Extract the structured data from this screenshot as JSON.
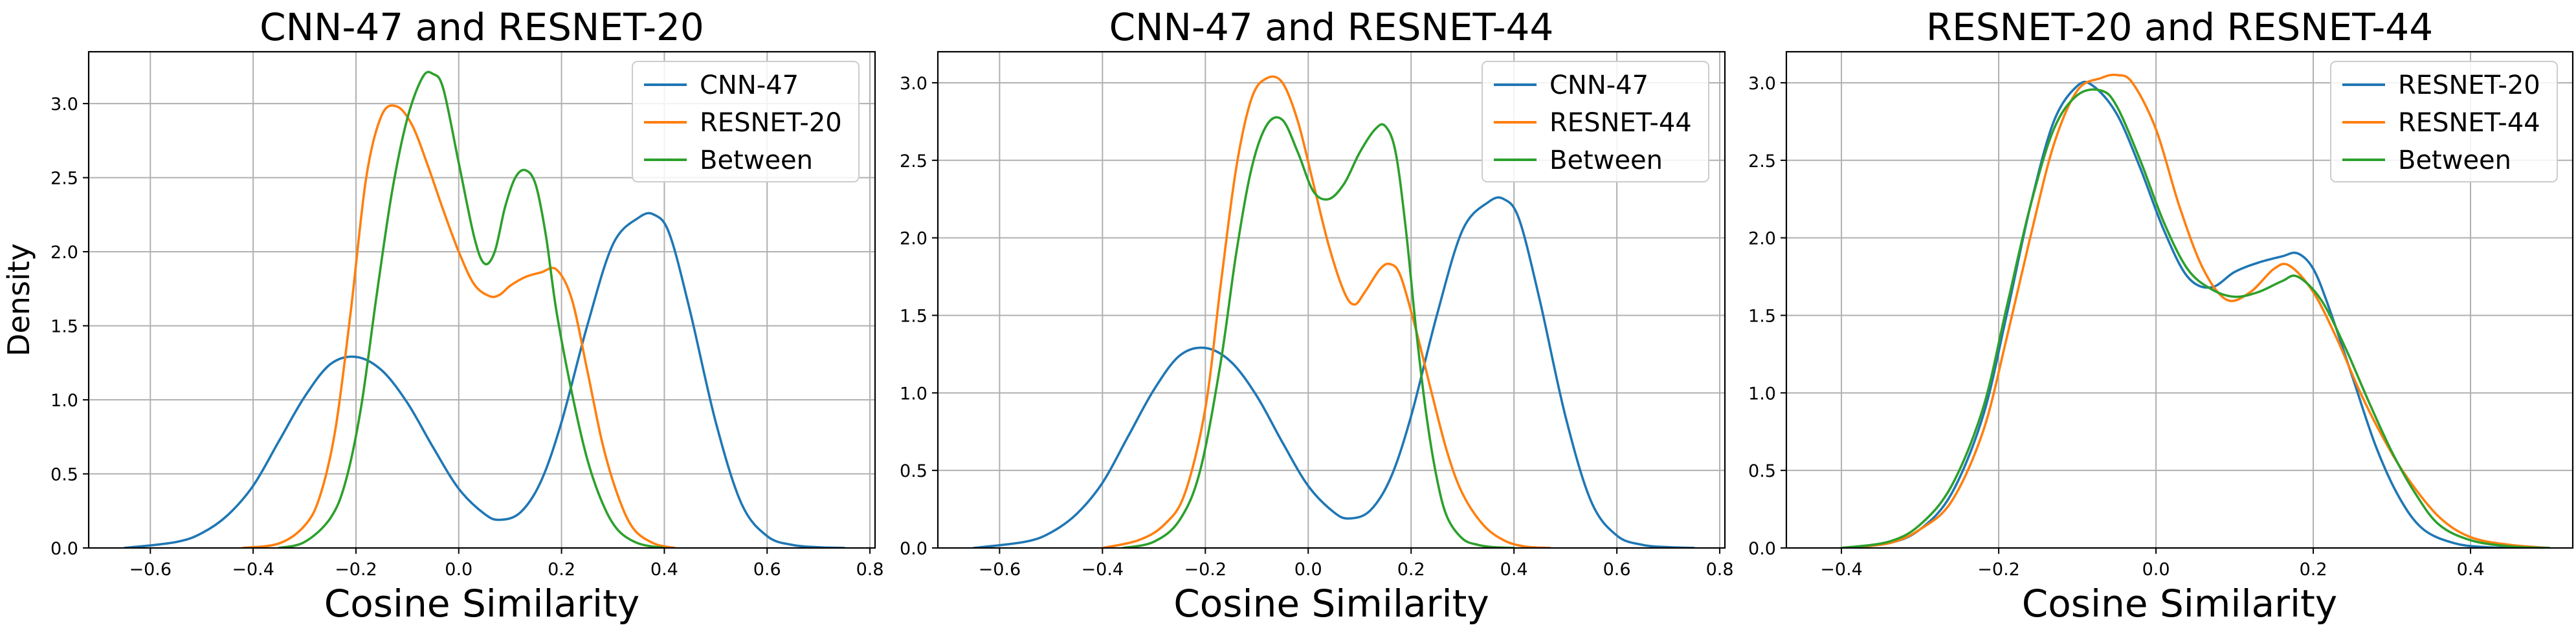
{
  "chart_data": [
    {
      "type": "line",
      "title": "CNN-47 and RESNET-20",
      "xlabel": "Cosine Similarity",
      "ylabel": "Density",
      "xlim": [
        -0.72,
        0.81
      ],
      "ylim": [
        0,
        3.35
      ],
      "xticks": [
        -0.6,
        -0.4,
        -0.2,
        0.0,
        0.2,
        0.4,
        0.6,
        0.8
      ],
      "xtick_labels": [
        "−0.6",
        "−0.4",
        "−0.2",
        "0.0",
        "0.2",
        "0.4",
        "0.6",
        "0.8"
      ],
      "yticks": [
        0.0,
        0.5,
        1.0,
        1.5,
        2.0,
        2.5,
        3.0
      ],
      "ytick_labels": [
        "0.0",
        "0.5",
        "1.0",
        "1.5",
        "2.0",
        "2.5",
        "3.0"
      ],
      "grid": true,
      "legend_position": "top-right",
      "series": [
        {
          "name": "CNN-47",
          "color": "#1f77b4",
          "x": [
            -0.65,
            -0.55,
            -0.5,
            -0.45,
            -0.4,
            -0.35,
            -0.3,
            -0.25,
            -0.2,
            -0.15,
            -0.1,
            -0.05,
            0.0,
            0.05,
            0.08,
            0.12,
            0.16,
            0.2,
            0.25,
            0.3,
            0.35,
            0.38,
            0.41,
            0.45,
            0.5,
            0.55,
            0.6,
            0.65,
            0.7,
            0.75
          ],
          "y": [
            0.0,
            0.04,
            0.1,
            0.22,
            0.42,
            0.72,
            1.02,
            1.24,
            1.29,
            1.2,
            0.98,
            0.68,
            0.4,
            0.23,
            0.19,
            0.24,
            0.45,
            0.85,
            1.5,
            2.05,
            2.23,
            2.25,
            2.12,
            1.6,
            0.85,
            0.3,
            0.08,
            0.02,
            0.005,
            0.0
          ]
        },
        {
          "name": "RESNET-20",
          "color": "#ff7f0e",
          "x": [
            -0.42,
            -0.35,
            -0.3,
            -0.27,
            -0.24,
            -0.21,
            -0.18,
            -0.15,
            -0.12,
            -0.09,
            -0.06,
            -0.03,
            0.0,
            0.03,
            0.06,
            0.08,
            0.1,
            0.13,
            0.16,
            0.19,
            0.22,
            0.25,
            0.28,
            0.31,
            0.34,
            0.38,
            0.42
          ],
          "y": [
            0.0,
            0.03,
            0.15,
            0.35,
            0.8,
            1.6,
            2.5,
            2.92,
            2.98,
            2.85,
            2.58,
            2.28,
            2.0,
            1.78,
            1.7,
            1.71,
            1.77,
            1.83,
            1.86,
            1.88,
            1.68,
            1.2,
            0.7,
            0.35,
            0.13,
            0.03,
            0.0
          ]
        },
        {
          "name": "Between",
          "color": "#2ca02c",
          "x": [
            -0.35,
            -0.3,
            -0.25,
            -0.22,
            -0.19,
            -0.16,
            -0.13,
            -0.1,
            -0.07,
            -0.05,
            -0.03,
            0.0,
            0.03,
            0.05,
            0.07,
            0.09,
            0.11,
            0.13,
            0.15,
            0.17,
            0.19,
            0.22,
            0.25,
            0.28,
            0.31,
            0.35,
            0.4
          ],
          "y": [
            0.0,
            0.04,
            0.2,
            0.45,
            0.95,
            1.7,
            2.4,
            2.9,
            3.18,
            3.2,
            3.1,
            2.6,
            2.1,
            1.92,
            2.0,
            2.3,
            2.5,
            2.55,
            2.45,
            2.1,
            1.6,
            1.05,
            0.6,
            0.3,
            0.12,
            0.03,
            0.0
          ]
        }
      ]
    },
    {
      "type": "line",
      "title": "CNN-47 and RESNET-44",
      "xlabel": "Cosine Similarity",
      "xlim": [
        -0.72,
        0.81
      ],
      "ylim": [
        0,
        3.2
      ],
      "xticks": [
        -0.6,
        -0.4,
        -0.2,
        0.0,
        0.2,
        0.4,
        0.6,
        0.8
      ],
      "xtick_labels": [
        "−0.6",
        "−0.4",
        "−0.2",
        "0.0",
        "0.2",
        "0.4",
        "0.6",
        "0.8"
      ],
      "yticks": [
        0.0,
        0.5,
        1.0,
        1.5,
        2.0,
        2.5,
        3.0
      ],
      "ytick_labels": [
        "0.0",
        "0.5",
        "1.0",
        "1.5",
        "2.0",
        "2.5",
        "3.0"
      ],
      "grid": true,
      "legend_position": "top-right",
      "series": [
        {
          "name": "CNN-47",
          "color": "#1f77b4",
          "x": [
            -0.65,
            -0.55,
            -0.5,
            -0.45,
            -0.4,
            -0.35,
            -0.3,
            -0.25,
            -0.2,
            -0.15,
            -0.1,
            -0.05,
            0.0,
            0.05,
            0.08,
            0.12,
            0.16,
            0.2,
            0.25,
            0.3,
            0.35,
            0.38,
            0.41,
            0.45,
            0.5,
            0.55,
            0.6,
            0.65,
            0.7,
            0.75
          ],
          "y": [
            0.0,
            0.04,
            0.1,
            0.22,
            0.42,
            0.72,
            1.02,
            1.24,
            1.29,
            1.2,
            0.98,
            0.68,
            0.4,
            0.23,
            0.19,
            0.24,
            0.45,
            0.85,
            1.5,
            2.05,
            2.23,
            2.25,
            2.12,
            1.6,
            0.85,
            0.3,
            0.08,
            0.02,
            0.005,
            0.0
          ]
        },
        {
          "name": "RESNET-44",
          "color": "#ff7f0e",
          "x": [
            -0.4,
            -0.33,
            -0.28,
            -0.24,
            -0.2,
            -0.17,
            -0.14,
            -0.11,
            -0.08,
            -0.05,
            -0.02,
            0.01,
            0.04,
            0.07,
            0.09,
            0.11,
            0.14,
            0.16,
            0.18,
            0.21,
            0.24,
            0.27,
            0.3,
            0.34,
            0.38,
            0.42,
            0.47
          ],
          "y": [
            0.0,
            0.05,
            0.15,
            0.35,
            0.9,
            1.7,
            2.45,
            2.9,
            3.03,
            3.0,
            2.75,
            2.35,
            1.95,
            1.65,
            1.57,
            1.65,
            1.8,
            1.83,
            1.75,
            1.4,
            1.0,
            0.62,
            0.35,
            0.15,
            0.05,
            0.01,
            0.0
          ]
        },
        {
          "name": "Between",
          "color": "#2ca02c",
          "x": [
            -0.36,
            -0.3,
            -0.25,
            -0.21,
            -0.17,
            -0.14,
            -0.11,
            -0.08,
            -0.05,
            -0.02,
            0.01,
            0.04,
            0.07,
            0.1,
            0.13,
            0.15,
            0.17,
            0.19,
            0.21,
            0.23,
            0.25,
            0.27,
            0.3,
            0.33,
            0.36,
            0.4
          ],
          "y": [
            0.0,
            0.04,
            0.18,
            0.5,
            1.2,
            1.9,
            2.45,
            2.73,
            2.76,
            2.55,
            2.3,
            2.25,
            2.35,
            2.55,
            2.7,
            2.72,
            2.55,
            2.05,
            1.4,
            0.85,
            0.45,
            0.2,
            0.06,
            0.02,
            0.005,
            0.0
          ]
        }
      ]
    },
    {
      "type": "line",
      "title": "RESNET-20 and RESNET-44",
      "xlabel": "Cosine Similarity",
      "xlim": [
        -0.47,
        0.53
      ],
      "ylim": [
        0,
        3.2
      ],
      "xticks": [
        -0.4,
        -0.2,
        0.0,
        0.2,
        0.4
      ],
      "xtick_labels": [
        "−0.4",
        "−0.2",
        "0.0",
        "0.2",
        "0.4"
      ],
      "yticks": [
        0.0,
        0.5,
        1.0,
        1.5,
        2.0,
        2.5,
        3.0
      ],
      "ytick_labels": [
        "0.0",
        "0.5",
        "1.0",
        "1.5",
        "2.0",
        "2.5",
        "3.0"
      ],
      "grid": true,
      "legend_position": "top-right",
      "series": [
        {
          "name": "RESNET-20",
          "color": "#1f77b4",
          "x": [
            -0.4,
            -0.34,
            -0.3,
            -0.26,
            -0.22,
            -0.19,
            -0.16,
            -0.13,
            -0.1,
            -0.08,
            -0.05,
            -0.02,
            0.01,
            0.04,
            0.07,
            0.1,
            0.13,
            0.16,
            0.18,
            0.2,
            0.22,
            0.25,
            0.28,
            0.31,
            0.34,
            0.38,
            0.42,
            0.47
          ],
          "y": [
            0.0,
            0.03,
            0.12,
            0.35,
            0.85,
            1.5,
            2.2,
            2.75,
            2.98,
            2.98,
            2.8,
            2.45,
            2.05,
            1.75,
            1.68,
            1.78,
            1.84,
            1.88,
            1.9,
            1.8,
            1.55,
            1.1,
            0.65,
            0.32,
            0.12,
            0.03,
            0.005,
            0.0
          ]
        },
        {
          "name": "RESNET-44",
          "color": "#ff7f0e",
          "x": [
            -0.4,
            -0.34,
            -0.3,
            -0.26,
            -0.22,
            -0.19,
            -0.16,
            -0.13,
            -0.1,
            -0.07,
            -0.05,
            -0.03,
            0.0,
            0.03,
            0.06,
            0.09,
            0.12,
            0.15,
            0.17,
            0.2,
            0.23,
            0.26,
            0.29,
            0.32,
            0.36,
            0.4,
            0.45,
            0.5
          ],
          "y": [
            0.0,
            0.03,
            0.12,
            0.3,
            0.75,
            1.35,
            2.0,
            2.6,
            2.95,
            3.03,
            3.05,
            3.0,
            2.7,
            2.2,
            1.8,
            1.6,
            1.65,
            1.8,
            1.82,
            1.65,
            1.35,
            1.0,
            0.7,
            0.45,
            0.2,
            0.07,
            0.02,
            0.0
          ]
        },
        {
          "name": "Between",
          "color": "#2ca02c",
          "x": [
            -0.4,
            -0.34,
            -0.3,
            -0.26,
            -0.22,
            -0.19,
            -0.16,
            -0.13,
            -0.1,
            -0.07,
            -0.05,
            -0.02,
            0.01,
            0.04,
            0.07,
            0.1,
            0.13,
            0.16,
            0.18,
            0.21,
            0.24,
            0.27,
            0.3,
            0.33,
            0.36,
            0.4,
            0.45,
            0.5
          ],
          "y": [
            0.0,
            0.04,
            0.15,
            0.4,
            0.9,
            1.55,
            2.2,
            2.7,
            2.92,
            2.95,
            2.85,
            2.5,
            2.1,
            1.8,
            1.67,
            1.62,
            1.65,
            1.72,
            1.75,
            1.6,
            1.3,
            0.95,
            0.62,
            0.35,
            0.15,
            0.05,
            0.01,
            0.0
          ]
        }
      ]
    }
  ]
}
